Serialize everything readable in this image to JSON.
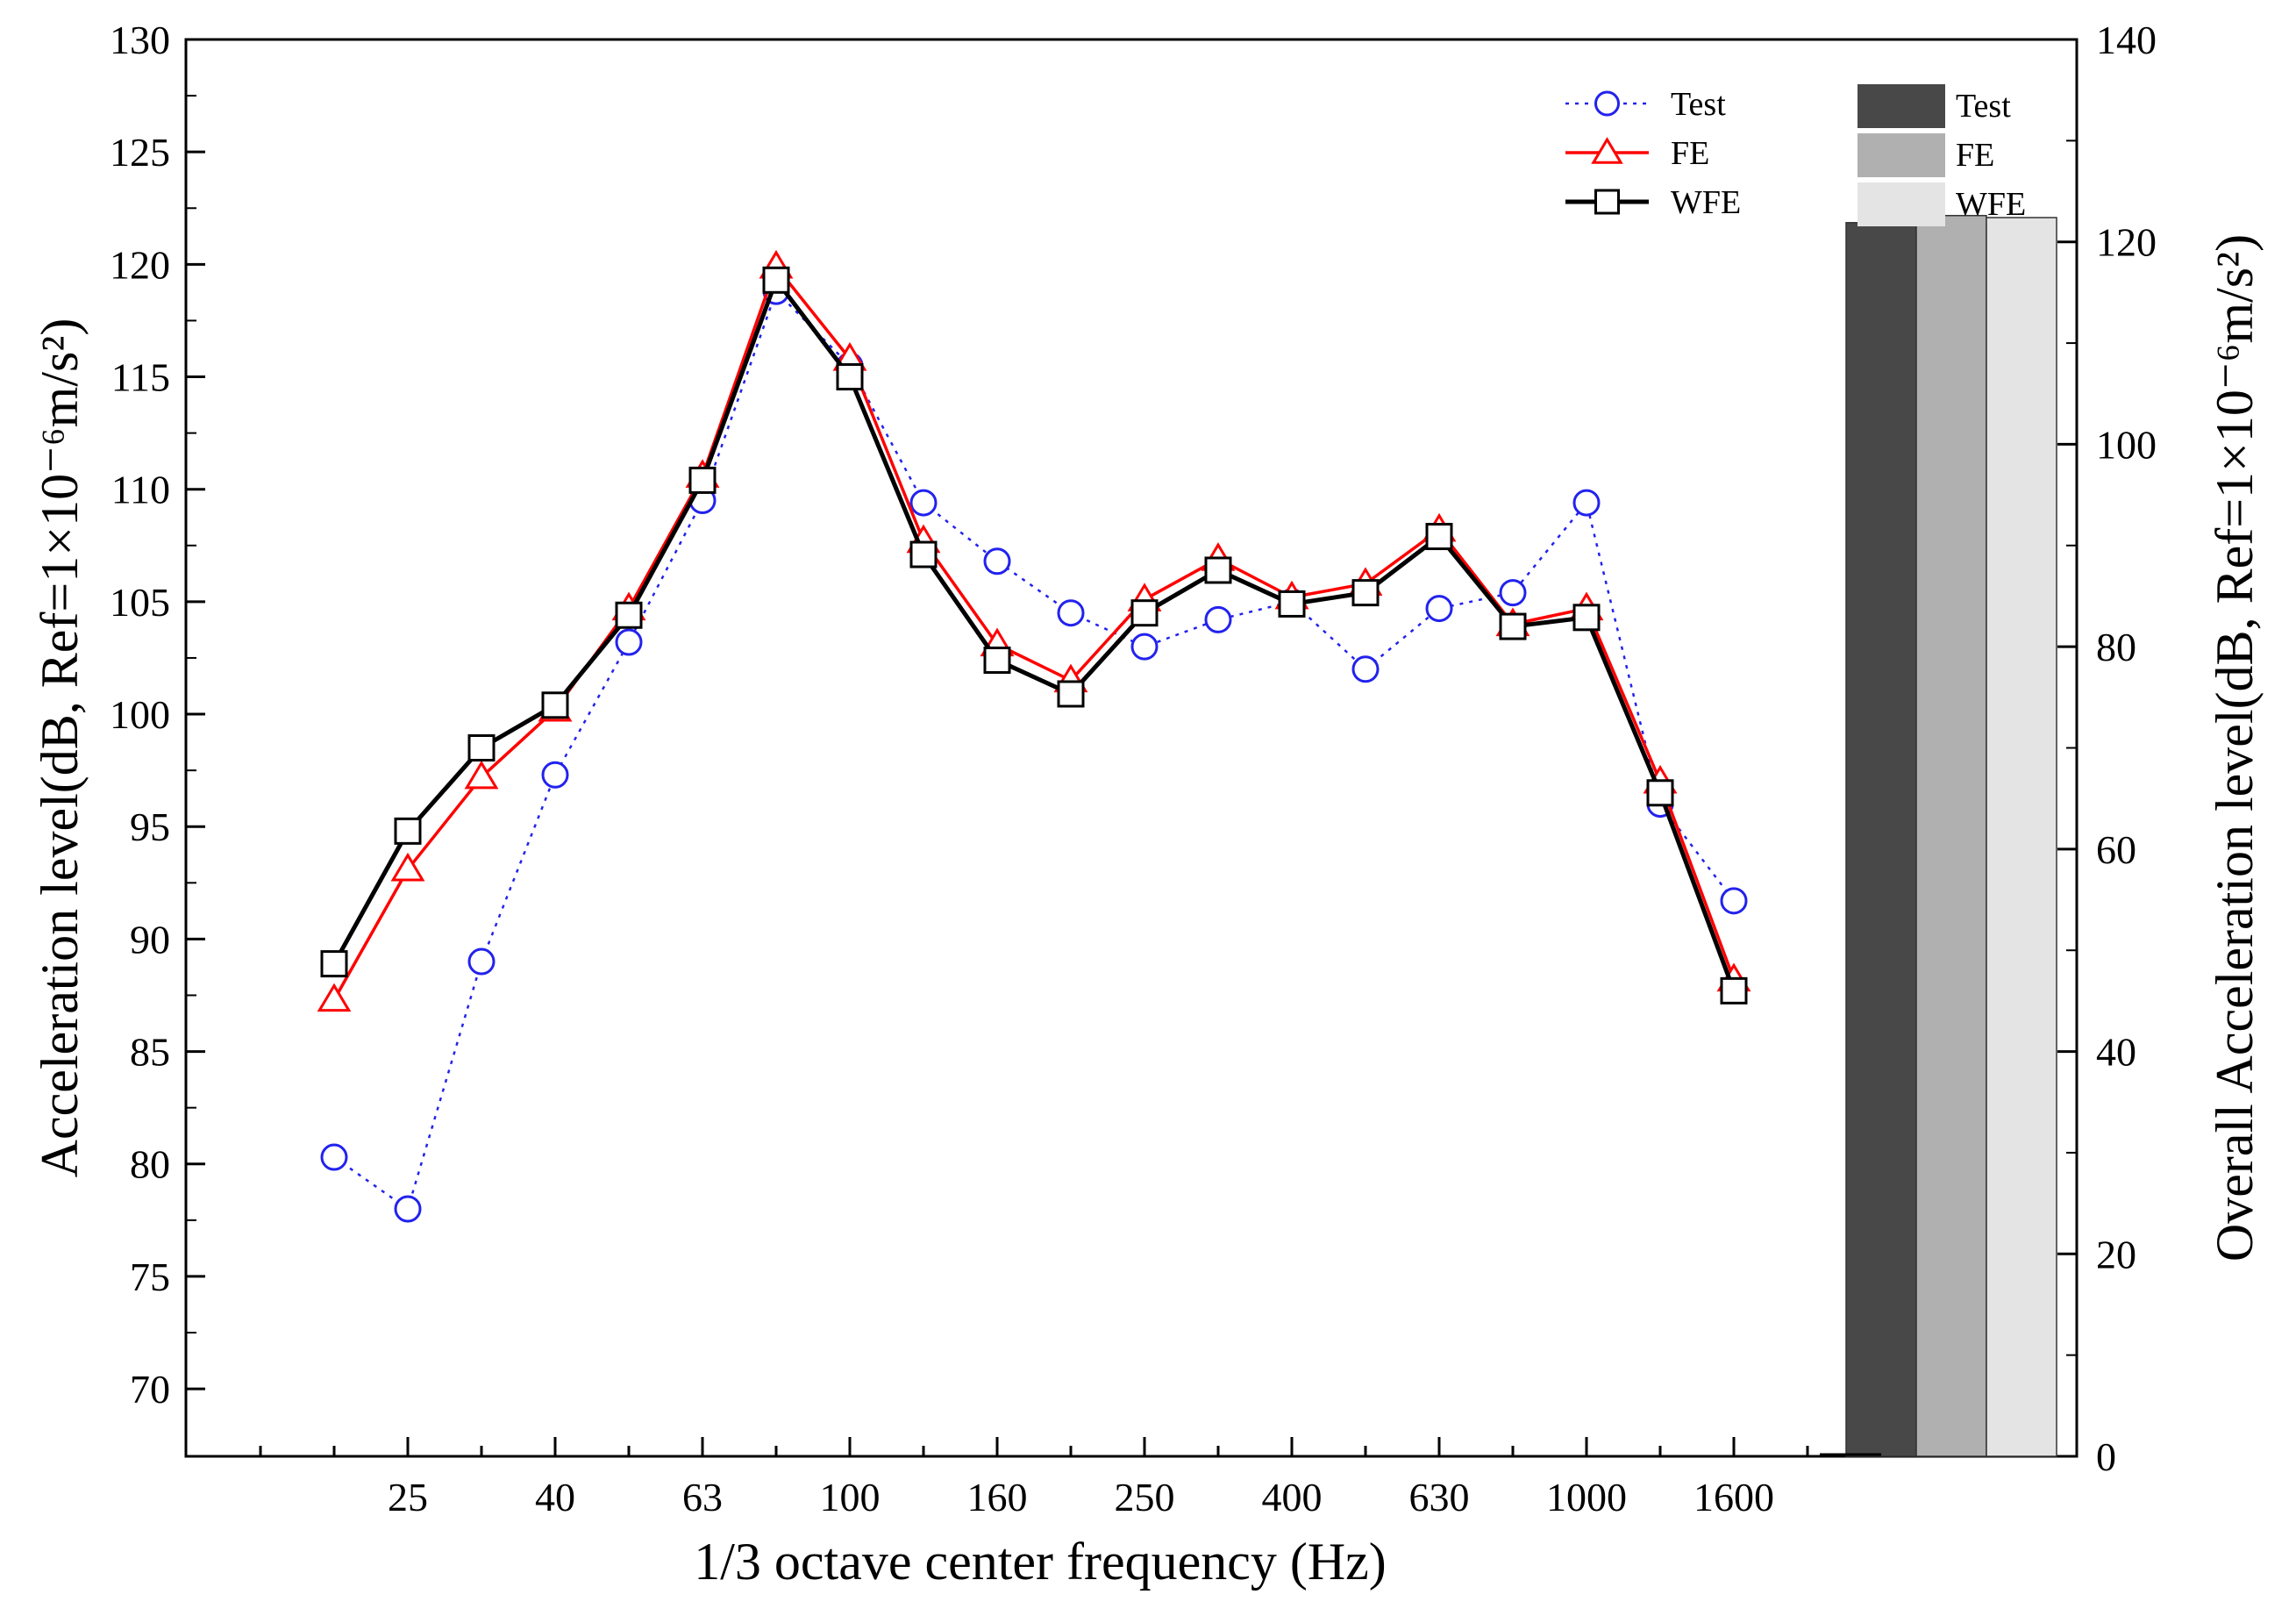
{
  "chart_data": {
    "type": "line",
    "xlabel": "1/3 octave center frequency (Hz)",
    "ylabel": "Acceleration level(dB, Ref=1×10⁻⁶m/s²)",
    "ylabel_right": "Overall Acceleration level(dB, Ref=1×10⁻⁶m/s²)",
    "ylim": [
      67,
      130
    ],
    "y_ticks": [
      70,
      75,
      80,
      85,
      90,
      95,
      100,
      105,
      110,
      115,
      120,
      125,
      130
    ],
    "y2lim": [
      0,
      140
    ],
    "y2_ticks": [
      0,
      20,
      40,
      60,
      80,
      100,
      120,
      140
    ],
    "bands": [
      "20",
      "25",
      "31.5",
      "40",
      "50",
      "63",
      "80",
      "100",
      "125",
      "160",
      "200",
      "250",
      "315",
      "400",
      "500",
      "630",
      "800",
      "1000",
      "1250",
      "1600"
    ],
    "x_tick_labels": [
      "25",
      "40",
      "63",
      "100",
      "160",
      "250",
      "400",
      "630",
      "1000",
      "1600"
    ],
    "series": [
      {
        "name": "Test",
        "color": "#2222ee",
        "line": "dotted",
        "marker": "circle",
        "values": [
          80.3,
          78.0,
          89.0,
          97.3,
          103.2,
          109.5,
          118.8,
          115.5,
          109.4,
          106.8,
          104.5,
          103.0,
          104.2,
          105.0,
          102.0,
          104.7,
          105.4,
          109.4,
          96.0,
          91.7
        ]
      },
      {
        "name": "FE",
        "color": "#ff0000",
        "line": "solid",
        "marker": "triangle",
        "values": [
          87.3,
          93.1,
          97.2,
          100.2,
          104.7,
          110.6,
          119.9,
          115.8,
          107.7,
          103.1,
          101.5,
          105.1,
          106.9,
          105.2,
          105.8,
          108.2,
          104.0,
          104.7,
          97.0,
          88.2
        ]
      },
      {
        "name": "WFE",
        "color": "#000000",
        "line": "solid",
        "marker": "square",
        "values": [
          88.9,
          94.8,
          98.5,
          100.4,
          104.4,
          110.4,
          119.3,
          115.0,
          107.1,
          102.4,
          100.9,
          104.5,
          106.4,
          104.9,
          105.4,
          107.9,
          103.9,
          104.3,
          96.5,
          87.7
        ]
      }
    ],
    "overall_bars": {
      "axis": "right",
      "entries": [
        {
          "name": "Test",
          "value": 121.9,
          "color": "#484848"
        },
        {
          "name": "FE",
          "value": 122.6,
          "color": "#b0b0b0"
        },
        {
          "name": "WFE",
          "value": 122.4,
          "color": "#e4e4e4"
        }
      ]
    }
  }
}
